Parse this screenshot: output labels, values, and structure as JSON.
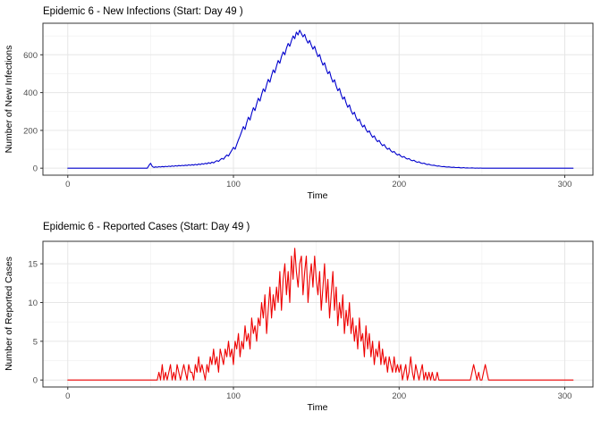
{
  "window": {
    "background": "#ffffff"
  },
  "chart_data": [
    {
      "type": "line",
      "title": "Epidemic 6 - New Infections (Start: Day 49 )",
      "xlabel": "Time",
      "ylabel": "Number of New Infections",
      "line_color": "#0000CD",
      "grid": true,
      "legend": "none",
      "xlim": [
        -15,
        317
      ],
      "ylim": [
        -37,
        767
      ],
      "x_ticks": [
        0,
        100,
        200,
        300
      ],
      "x_minor_ticks": [
        50,
        150,
        250
      ],
      "y_ticks": [
        0,
        200,
        400,
        600
      ],
      "y_minor_ticks": [
        100,
        300,
        500,
        700
      ],
      "x_start": 0,
      "x_step": 1,
      "values": [
        0,
        0,
        0,
        0,
        0,
        0,
        0,
        0,
        0,
        0,
        0,
        0,
        0,
        0,
        0,
        0,
        0,
        0,
        0,
        0,
        0,
        0,
        0,
        0,
        0,
        0,
        0,
        0,
        0,
        0,
        0,
        0,
        0,
        0,
        0,
        0,
        0,
        0,
        0,
        0,
        0,
        0,
        0,
        0,
        0,
        0,
        0,
        0,
        0,
        15,
        26,
        9,
        4,
        7,
        5,
        8,
        6,
        9,
        7,
        10,
        8,
        11,
        9,
        12,
        10,
        13,
        11,
        14,
        12,
        15,
        13,
        16,
        14,
        18,
        15,
        19,
        16,
        20,
        17,
        22,
        19,
        24,
        21,
        26,
        23,
        29,
        25,
        32,
        28,
        35,
        40,
        36,
        45,
        52,
        47,
        60,
        70,
        64,
        80,
        95,
        110,
        100,
        125,
        150,
        170,
        195,
        220,
        205,
        240,
        270,
        255,
        290,
        320,
        305,
        340,
        370,
        355,
        390,
        420,
        405,
        440,
        470,
        455,
        490,
        520,
        505,
        540,
        570,
        555,
        590,
        615,
        600,
        635,
        660,
        645,
        675,
        700,
        685,
        720,
        705,
        730,
        712,
        695,
        708,
        680,
        662,
        676,
        650,
        630,
        645,
        615,
        590,
        602,
        570,
        545,
        558,
        525,
        500,
        512,
        480,
        455,
        468,
        435,
        410,
        422,
        390,
        365,
        377,
        345,
        322,
        335,
        305,
        285,
        296,
        268,
        250,
        260,
        235,
        218,
        228,
        205,
        190,
        198,
        178,
        163,
        171,
        152,
        140,
        147,
        130,
        119,
        125,
        110,
        100,
        106,
        92,
        84,
        89,
        77,
        70,
        74,
        64,
        58,
        62,
        53,
        48,
        51,
        43,
        39,
        42,
        35,
        31,
        34,
        28,
        25,
        27,
        22,
        19,
        21,
        17,
        15,
        16,
        13,
        11,
        12,
        10,
        8,
        9,
        7,
        6,
        7,
        5,
        4,
        5,
        3,
        3,
        4,
        2,
        2,
        3,
        1,
        2,
        1,
        1,
        2,
        1,
        0,
        1,
        0,
        1,
        0,
        0,
        0,
        0,
        0,
        0,
        0,
        0,
        0,
        0,
        0,
        0,
        0,
        0,
        0,
        0,
        0,
        0,
        0,
        0,
        0,
        0,
        0,
        0,
        0,
        0,
        0,
        0,
        0,
        0,
        0,
        0,
        0,
        0,
        0,
        0,
        0,
        0,
        0,
        0,
        0,
        0,
        0,
        0,
        0,
        0,
        0,
        0,
        0,
        0,
        0,
        0,
        0,
        0,
        0,
        0
      ]
    },
    {
      "type": "line",
      "title": "Epidemic 6 - Reported Cases (Start: Day 49 )",
      "xlabel": "Time",
      "ylabel": "Number of Reported Cases",
      "line_color": "#EE0000",
      "grid": true,
      "legend": "none",
      "xlim": [
        -15,
        317
      ],
      "ylim": [
        -0.9,
        17.9
      ],
      "x_ticks": [
        0,
        100,
        200,
        300
      ],
      "x_minor_ticks": [
        50,
        150,
        250
      ],
      "y_ticks": [
        0,
        5,
        10,
        15
      ],
      "y_minor_ticks": [
        2.5,
        7.5,
        12.5
      ],
      "x_start": 0,
      "x_step": 1,
      "values": [
        0,
        0,
        0,
        0,
        0,
        0,
        0,
        0,
        0,
        0,
        0,
        0,
        0,
        0,
        0,
        0,
        0,
        0,
        0,
        0,
        0,
        0,
        0,
        0,
        0,
        0,
        0,
        0,
        0,
        0,
        0,
        0,
        0,
        0,
        0,
        0,
        0,
        0,
        0,
        0,
        0,
        0,
        0,
        0,
        0,
        0,
        0,
        0,
        0,
        0,
        0,
        0,
        0,
        0,
        0,
        1,
        0,
        2,
        0,
        1,
        0,
        1,
        2,
        0,
        1,
        0,
        2,
        1,
        0,
        1,
        2,
        1,
        0,
        2,
        1,
        1,
        0,
        2,
        1,
        3,
        1,
        2,
        1,
        0,
        2,
        1,
        3,
        2,
        4,
        2,
        3,
        1,
        4,
        3,
        2,
        4,
        3,
        5,
        3,
        4,
        2,
        5,
        4,
        6,
        3,
        5,
        4,
        7,
        5,
        6,
        4,
        8,
        6,
        7,
        5,
        8,
        7,
        10,
        8,
        11,
        6,
        9,
        12,
        8,
        11,
        9,
        12,
        10,
        14,
        9,
        13,
        15,
        11,
        14,
        10,
        16,
        13,
        17,
        14,
        12,
        15,
        16,
        11,
        14,
        16,
        10,
        13,
        15,
        12,
        16,
        13,
        11,
        14,
        9,
        12,
        15,
        10,
        13,
        8,
        11,
        14,
        9,
        12,
        7,
        10,
        8,
        11,
        6,
        9,
        7,
        10,
        6,
        8,
        5,
        7,
        4,
        8,
        5,
        6,
        3,
        7,
        4,
        6,
        3,
        5,
        2,
        4,
        3,
        5,
        2,
        4,
        2,
        3,
        1,
        3,
        2,
        1,
        3,
        1,
        2,
        1,
        2,
        0,
        1,
        2,
        0,
        1,
        3,
        1,
        0,
        2,
        1,
        0,
        1,
        2,
        0,
        1,
        0,
        1,
        0,
        1,
        0,
        0,
        1,
        0,
        0,
        0,
        0,
        0,
        0,
        0,
        0,
        0,
        0,
        0,
        0,
        0,
        0,
        0,
        0,
        0,
        0,
        0,
        0,
        1,
        2,
        1,
        0,
        1,
        0,
        0,
        1,
        2,
        1,
        0,
        0,
        0,
        0,
        0,
        0,
        0,
        0,
        0,
        0,
        0,
        0,
        0,
        0,
        0,
        0,
        0,
        0,
        0,
        0,
        0,
        0,
        0,
        0,
        0,
        0,
        0,
        0,
        0,
        0,
        0,
        0,
        0,
        0,
        0,
        0,
        0,
        0,
        0,
        0,
        0,
        0,
        0,
        0,
        0,
        0,
        0,
        0,
        0,
        0,
        0,
        0
      ]
    }
  ]
}
